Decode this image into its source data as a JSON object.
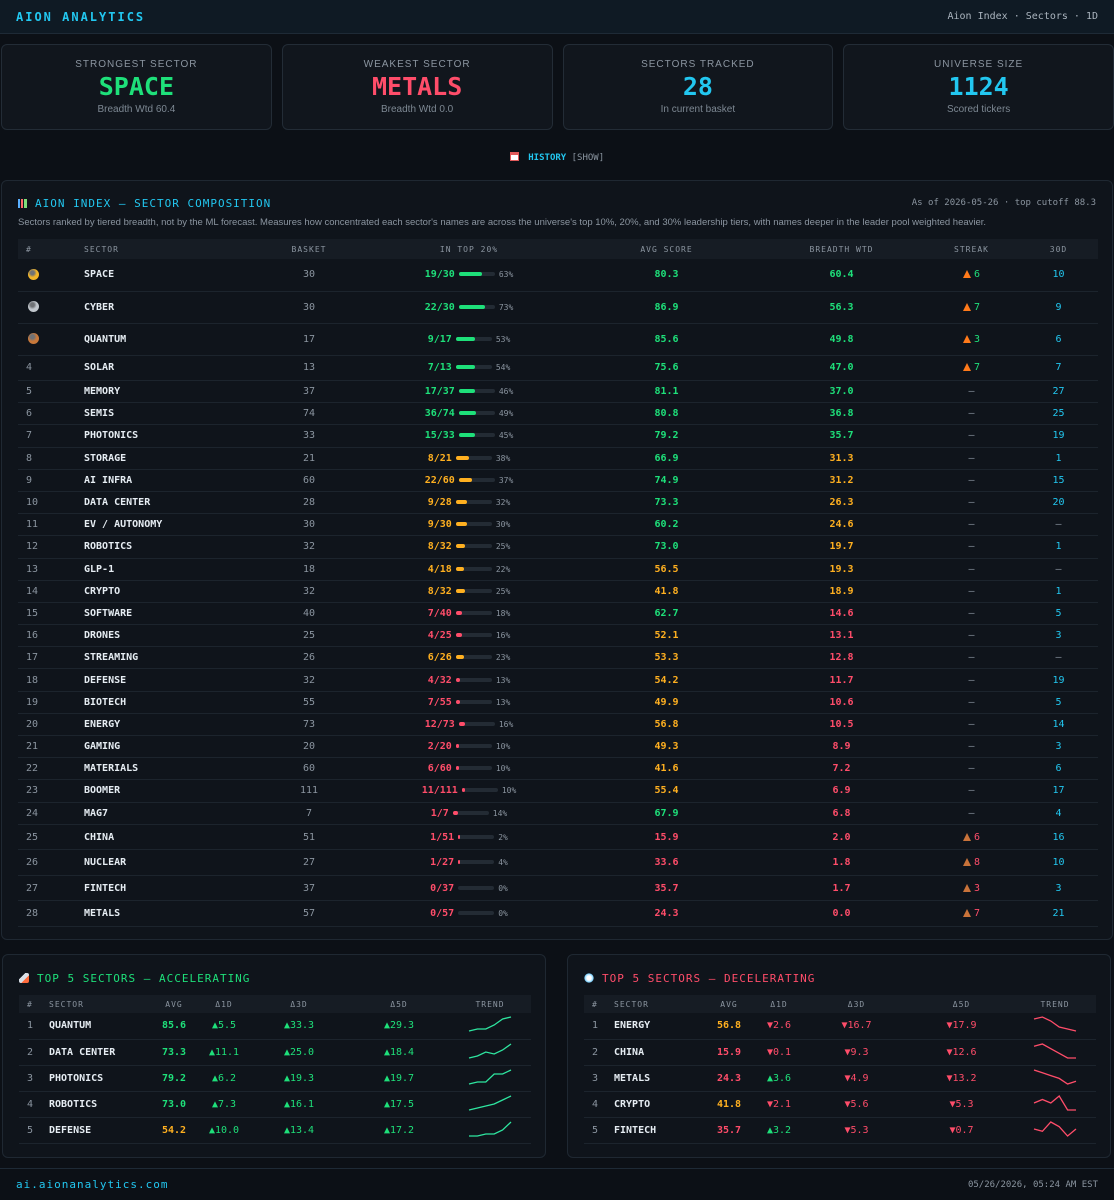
{
  "header": {
    "brand": "AION ANALYTICS",
    "nav": "Aion Index · Sectors · 1D"
  },
  "cards": [
    {
      "label": "STRONGEST SECTOR",
      "value": "SPACE",
      "sub": "Breadth Wtd 60.4",
      "color": "#1ee07a"
    },
    {
      "label": "WEAKEST SECTOR",
      "value": "METALS",
      "sub": "Breadth Wtd 0.0",
      "color": "#ff4d6a"
    },
    {
      "label": "SECTORS TRACKED",
      "value": "28",
      "sub": "In current basket",
      "color": "#22c7f0"
    },
    {
      "label": "UNIVERSE SIZE",
      "value": "1124",
      "sub": "Scored tickers",
      "color": "#22c7f0"
    }
  ],
  "history": {
    "label": "HISTORY",
    "toggle": "[SHOW]"
  },
  "composition": {
    "title": "AION INDEX — SECTOR COMPOSITION",
    "asof": "As of 2026-05-26 · top cutoff 88.3",
    "description": "Sectors ranked by tiered breadth, not by the ML forecast. Measures how concentrated each sector's names are across the universe's top 10%, 20%, and 30% leadership tiers, with names deeper in the leader pool weighted heavier.",
    "columns": [
      "#",
      "SECTOR",
      "BASKET",
      "IN TOP 20%",
      "AVG SCORE",
      "BREADTH WTD",
      "STREAK",
      "30D"
    ],
    "rows": [
      {
        "rank": "",
        "medal": "gold",
        "sector": "SPACE",
        "basket": "30",
        "top": "19/30",
        "pct": "63%",
        "frac": 0.63,
        "avg": "80.3",
        "breadth": "60.4",
        "streak": "6",
        "streak_type": "fire",
        "d30": "10"
      },
      {
        "rank": "",
        "medal": "silver",
        "sector": "CYBER",
        "basket": "30",
        "top": "22/30",
        "pct": "73%",
        "frac": 0.73,
        "avg": "86.9",
        "breadth": "56.3",
        "streak": "7",
        "streak_type": "fire",
        "d30": "9"
      },
      {
        "rank": "",
        "medal": "bronze",
        "sector": "QUANTUM",
        "basket": "17",
        "top": "9/17",
        "pct": "53%",
        "frac": 0.53,
        "avg": "85.6",
        "breadth": "49.8",
        "streak": "3",
        "streak_type": "fire",
        "d30": "6"
      },
      {
        "rank": "4",
        "sector": "SOLAR",
        "basket": "13",
        "top": "7/13",
        "pct": "54%",
        "frac": 0.54,
        "avg": "75.6",
        "breadth": "47.0",
        "streak": "7",
        "streak_type": "fire",
        "d30": "7"
      },
      {
        "rank": "5",
        "sector": "MEMORY",
        "basket": "37",
        "top": "17/37",
        "pct": "46%",
        "frac": 0.46,
        "avg": "81.1",
        "breadth": "37.0",
        "streak": "—",
        "streak_type": "none",
        "d30": "27"
      },
      {
        "rank": "6",
        "sector": "SEMIS",
        "basket": "74",
        "top": "36/74",
        "pct": "49%",
        "frac": 0.49,
        "avg": "80.8",
        "breadth": "36.8",
        "streak": "—",
        "streak_type": "none",
        "d30": "25"
      },
      {
        "rank": "7",
        "sector": "PHOTONICS",
        "basket": "33",
        "top": "15/33",
        "pct": "45%",
        "frac": 0.45,
        "avg": "79.2",
        "breadth": "35.7",
        "streak": "—",
        "streak_type": "none",
        "d30": "19"
      },
      {
        "rank": "8",
        "sector": "STORAGE",
        "basket": "21",
        "top": "8/21",
        "pct": "38%",
        "frac": 0.38,
        "avg": "66.9",
        "breadth": "31.3",
        "streak": "—",
        "streak_type": "none",
        "d30": "1"
      },
      {
        "rank": "9",
        "sector": "AI INFRA",
        "basket": "60",
        "top": "22/60",
        "pct": "37%",
        "frac": 0.37,
        "avg": "74.9",
        "breadth": "31.2",
        "streak": "—",
        "streak_type": "none",
        "d30": "15"
      },
      {
        "rank": "10",
        "sector": "DATA CENTER",
        "basket": "28",
        "top": "9/28",
        "pct": "32%",
        "frac": 0.32,
        "avg": "73.3",
        "breadth": "26.3",
        "streak": "—",
        "streak_type": "none",
        "d30": "20"
      },
      {
        "rank": "11",
        "sector": "EV / AUTONOMY",
        "basket": "30",
        "top": "9/30",
        "pct": "30%",
        "frac": 0.3,
        "avg": "60.2",
        "breadth": "24.6",
        "streak": "—",
        "streak_type": "none",
        "d30": "—"
      },
      {
        "rank": "12",
        "sector": "ROBOTICS",
        "basket": "32",
        "top": "8/32",
        "pct": "25%",
        "frac": 0.25,
        "avg": "73.0",
        "breadth": "19.7",
        "streak": "—",
        "streak_type": "none",
        "d30": "1"
      },
      {
        "rank": "13",
        "sector": "GLP-1",
        "basket": "18",
        "top": "4/18",
        "pct": "22%",
        "frac": 0.22,
        "avg": "56.5",
        "breadth": "19.3",
        "streak": "—",
        "streak_type": "none",
        "d30": "—"
      },
      {
        "rank": "14",
        "sector": "CRYPTO",
        "basket": "32",
        "top": "8/32",
        "pct": "25%",
        "frac": 0.25,
        "avg": "41.8",
        "breadth": "18.9",
        "streak": "—",
        "streak_type": "none",
        "d30": "1"
      },
      {
        "rank": "15",
        "sector": "SOFTWARE",
        "basket": "40",
        "top": "7/40",
        "pct": "18%",
        "frac": 0.18,
        "avg": "62.7",
        "breadth": "14.6",
        "streak": "—",
        "streak_type": "none",
        "d30": "5"
      },
      {
        "rank": "16",
        "sector": "DRONES",
        "basket": "25",
        "top": "4/25",
        "pct": "16%",
        "frac": 0.16,
        "avg": "52.1",
        "breadth": "13.1",
        "streak": "—",
        "streak_type": "none",
        "d30": "3"
      },
      {
        "rank": "17",
        "sector": "STREAMING",
        "basket": "26",
        "top": "6/26",
        "pct": "23%",
        "frac": 0.23,
        "avg": "53.3",
        "breadth": "12.8",
        "streak": "—",
        "streak_type": "none",
        "d30": "—"
      },
      {
        "rank": "18",
        "sector": "DEFENSE",
        "basket": "32",
        "top": "4/32",
        "pct": "13%",
        "frac": 0.13,
        "avg": "54.2",
        "breadth": "11.7",
        "streak": "—",
        "streak_type": "none",
        "d30": "19"
      },
      {
        "rank": "19",
        "sector": "BIOTECH",
        "basket": "55",
        "top": "7/55",
        "pct": "13%",
        "frac": 0.13,
        "avg": "49.9",
        "breadth": "10.6",
        "streak": "—",
        "streak_type": "none",
        "d30": "5"
      },
      {
        "rank": "20",
        "sector": "ENERGY",
        "basket": "73",
        "top": "12/73",
        "pct": "16%",
        "frac": 0.16,
        "avg": "56.8",
        "breadth": "10.5",
        "streak": "—",
        "streak_type": "none",
        "d30": "14"
      },
      {
        "rank": "21",
        "sector": "GAMING",
        "basket": "20",
        "top": "2/20",
        "pct": "10%",
        "frac": 0.1,
        "avg": "49.3",
        "breadth": "8.9",
        "streak": "—",
        "streak_type": "none",
        "d30": "3"
      },
      {
        "rank": "22",
        "sector": "MATERIALS",
        "basket": "60",
        "top": "6/60",
        "pct": "10%",
        "frac": 0.1,
        "avg": "41.6",
        "breadth": "7.2",
        "streak": "—",
        "streak_type": "none",
        "d30": "6"
      },
      {
        "rank": "23",
        "sector": "BOOMER",
        "basket": "111",
        "top": "11/111",
        "pct": "10%",
        "frac": 0.1,
        "avg": "55.4",
        "breadth": "6.9",
        "streak": "—",
        "streak_type": "none",
        "d30": "17"
      },
      {
        "rank": "24",
        "sector": "MAG7",
        "basket": "7",
        "top": "1/7",
        "pct": "14%",
        "frac": 0.14,
        "avg": "67.9",
        "breadth": "6.8",
        "streak": "—",
        "streak_type": "none",
        "d30": "4"
      },
      {
        "rank": "25",
        "sector": "CHINA",
        "basket": "51",
        "top": "1/51",
        "pct": "2%",
        "frac": 0.02,
        "avg": "15.9",
        "breadth": "2.0",
        "streak": "6",
        "streak_type": "warn",
        "d30": "16"
      },
      {
        "rank": "26",
        "sector": "NUCLEAR",
        "basket": "27",
        "top": "1/27",
        "pct": "4%",
        "frac": 0.04,
        "avg": "33.6",
        "breadth": "1.8",
        "streak": "8",
        "streak_type": "warn",
        "d30": "10"
      },
      {
        "rank": "27",
        "sector": "FINTECH",
        "basket": "37",
        "top": "0/37",
        "pct": "0%",
        "frac": 0.0,
        "avg": "35.7",
        "breadth": "1.7",
        "streak": "3",
        "streak_type": "warn",
        "d30": "3"
      },
      {
        "rank": "28",
        "sector": "METALS",
        "basket": "57",
        "top": "0/57",
        "pct": "0%",
        "frac": 0.0,
        "avg": "24.3",
        "breadth": "0.0",
        "streak": "7",
        "streak_type": "warn",
        "d30": "21"
      }
    ]
  },
  "accelerating": {
    "title": "TOP 5 SECTORS — ACCELERATING",
    "columns": [
      "#",
      "SECTOR",
      "AVG",
      "Δ1D",
      "Δ3D",
      "Δ5D",
      "TREND"
    ],
    "rows": [
      {
        "rank": "1",
        "sector": "QUANTUM",
        "avg": "85.6",
        "d1": "▲5.5",
        "d3": "▲33.3",
        "d5": "▲29.3",
        "trend": [
          2,
          3,
          3,
          5,
          8,
          9
        ]
      },
      {
        "rank": "2",
        "sector": "DATA CENTER",
        "avg": "73.3",
        "d1": "▲11.1",
        "d3": "▲25.0",
        "d5": "▲18.4",
        "trend": [
          1,
          2,
          4,
          3,
          5,
          8
        ]
      },
      {
        "rank": "3",
        "sector": "PHOTONICS",
        "avg": "79.2",
        "d1": "▲6.2",
        "d3": "▲19.3",
        "d5": "▲19.7",
        "trend": [
          1,
          2,
          2,
          6,
          6,
          8
        ]
      },
      {
        "rank": "4",
        "sector": "ROBOTICS",
        "avg": "73.0",
        "d1": "▲7.3",
        "d3": "▲16.1",
        "d5": "▲17.5",
        "trend": [
          1,
          2,
          3,
          4,
          6,
          8
        ]
      },
      {
        "rank": "5",
        "sector": "DEFENSE",
        "avg": "54.2",
        "d1": "▲10.0",
        "d3": "▲13.4",
        "d5": "▲17.2",
        "trend": [
          1,
          1,
          2,
          2,
          4,
          8
        ]
      }
    ]
  },
  "decelerating": {
    "title": "TOP 5 SECTORS — DECELERATING",
    "columns": [
      "#",
      "SECTOR",
      "AVG",
      "Δ1D",
      "Δ3D",
      "Δ5D",
      "TREND"
    ],
    "rows": [
      {
        "rank": "1",
        "sector": "ENERGY",
        "avg": "56.8",
        "d1": "▼2.6",
        "d1_up": false,
        "d3": "▼16.7",
        "d5": "▼17.9",
        "trend": [
          8,
          9,
          7,
          4,
          3,
          2
        ]
      },
      {
        "rank": "2",
        "sector": "CHINA",
        "avg": "15.9",
        "d1": "▼0.1",
        "d1_up": false,
        "d3": "▼9.3",
        "d5": "▼12.6",
        "trend": [
          8,
          9,
          7,
          5,
          3,
          3
        ]
      },
      {
        "rank": "3",
        "sector": "METALS",
        "avg": "24.3",
        "d1": "▲3.6",
        "d1_up": true,
        "d3": "▼4.9",
        "d5": "▼13.2",
        "trend": [
          8,
          7,
          6,
          5,
          3,
          4
        ]
      },
      {
        "rank": "4",
        "sector": "CRYPTO",
        "avg": "41.8",
        "d1": "▼2.1",
        "d1_up": false,
        "d3": "▼5.6",
        "d5": "▼5.3",
        "trend": [
          6,
          7,
          6,
          8,
          4,
          4
        ]
      },
      {
        "rank": "5",
        "sector": "FINTECH",
        "avg": "35.7",
        "d1": "▲3.2",
        "d1_up": true,
        "d3": "▼5.3",
        "d5": "▼0.7",
        "trend": [
          6,
          5,
          9,
          7,
          3,
          6
        ]
      }
    ]
  },
  "footer": {
    "url": "ai.aionanalytics.com",
    "timestamp": "05/26/2026, 05:24 AM EST"
  },
  "colors": {
    "green": "#1ee07a",
    "amber": "#ffb020",
    "red": "#ff4d6a",
    "cyan": "#22c7f0",
    "gold": "#f0b429",
    "silver": "#c0c6cc",
    "bronze": "#c8783a"
  }
}
